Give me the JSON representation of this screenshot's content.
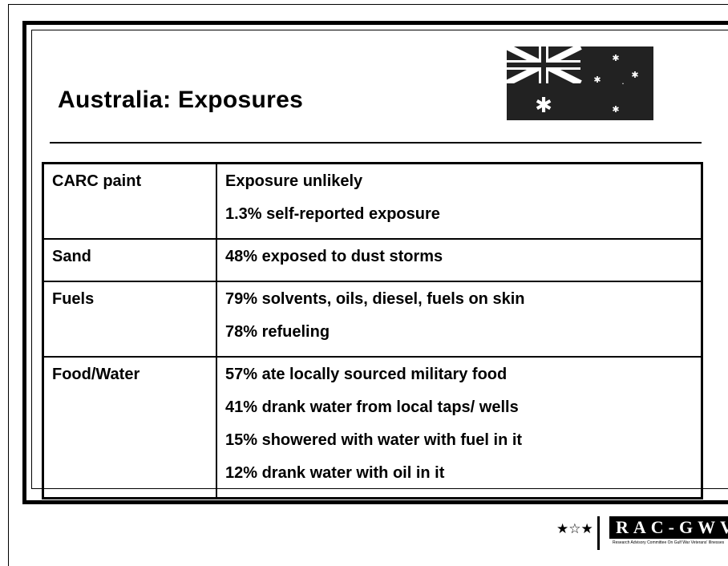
{
  "title": "Australia: Exposures",
  "table": {
    "rows": [
      {
        "label": "CARC paint",
        "items": [
          "Exposure unlikely",
          "1.3% self-reported exposure"
        ]
      },
      {
        "label": "Sand",
        "items": [
          "48% exposed to dust storms"
        ]
      },
      {
        "label": "Fuels",
        "items": [
          "79% solvents, oils, diesel, fuels on skin",
          "78% refueling"
        ]
      },
      {
        "label": "Food/Water",
        "items": [
          "57% ate locally sourced military food",
          "41% drank water from local taps/ wells",
          "15% showered with water with fuel in it",
          "12% drank water with oil in it"
        ]
      }
    ]
  },
  "footer": {
    "stars": "★☆★",
    "logo": "RAC-GWVI",
    "caption": "Research Advisory Committee On Gulf War Veterans' Illnesses"
  }
}
